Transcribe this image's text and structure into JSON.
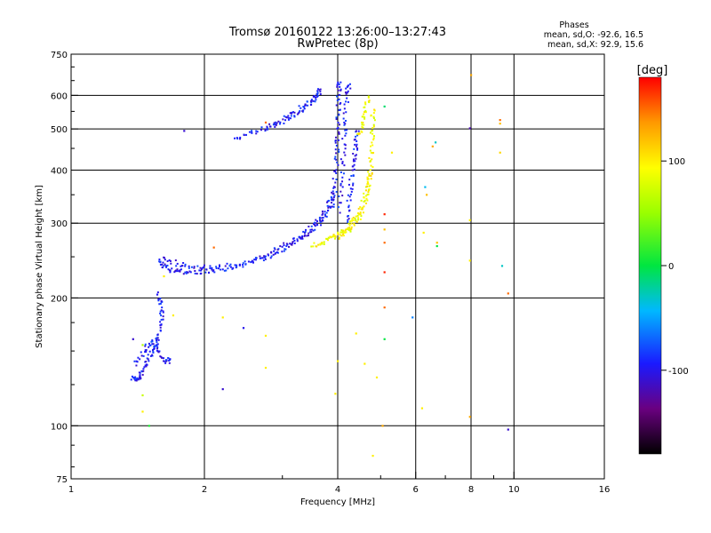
{
  "chart_data": {
    "type": "scatter",
    "title": "Tromsø 20160122 13:26:00–13:27:43",
    "subtitle": "RwPretec (8p)",
    "xlabel": "Frequency [MHz]",
    "ylabel": "Stationary phase Virtual Height [km]",
    "x_scale": "log",
    "y_scale": "log",
    "xlim": [
      1,
      16
    ],
    "ylim": [
      75,
      750
    ],
    "x_ticks": [
      {
        "v": 1,
        "label": "1"
      },
      {
        "v": 2,
        "label": "2"
      },
      {
        "v": 4,
        "label": "4"
      },
      {
        "v": 6,
        "label": "6"
      },
      {
        "v": 8,
        "label": "8"
      },
      {
        "v": 10,
        "label": "10"
      },
      {
        "v": 16,
        "label": "16"
      }
    ],
    "x_gridlines": [
      2,
      4,
      6,
      8,
      10
    ],
    "x_minor_ticks": [
      3,
      5,
      7,
      9
    ],
    "y_ticks": [
      {
        "v": 75,
        "label": "75"
      },
      {
        "v": 100,
        "label": "100"
      },
      {
        "v": 200,
        "label": "200"
      },
      {
        "v": 300,
        "label": "300"
      },
      {
        "v": 400,
        "label": "400"
      },
      {
        "v": 500,
        "label": "500"
      },
      {
        "v": 600,
        "label": "600"
      },
      {
        "v": 750,
        "label": "750"
      }
    ],
    "y_gridlines": [
      100,
      200,
      300,
      400,
      500,
      600
    ],
    "y_minor_ticks": [
      80,
      90,
      125,
      150,
      175,
      250,
      350,
      450,
      550,
      650,
      700
    ],
    "phases_header": "Phases",
    "phase_stats": [
      "mean, sd,O: -92.6, 16.5",
      "mean, sd,X:  92.9, 15.6"
    ],
    "colorbar": {
      "label": "[deg]",
      "range": [
        -180,
        180
      ],
      "ticks": [
        {
          "v": 100,
          "label": "100"
        },
        {
          "v": 0,
          "label": "0"
        },
        {
          "v": -100,
          "label": "-100"
        }
      ]
    },
    "series": [
      {
        "mode": "O",
        "phase_deg": -95,
        "segments": [
          [
            [
              1.37,
              130
            ],
            [
              1.41,
              128
            ],
            [
              1.44,
              132
            ],
            [
              1.47,
              140
            ],
            [
              1.52,
              148
            ],
            [
              1.56,
              155
            ],
            [
              1.58,
              165
            ],
            [
              1.6,
              180
            ],
            [
              1.59,
              195
            ],
            [
              1.57,
              205
            ]
          ],
          [
            [
              1.4,
              140
            ],
            [
              1.46,
              150
            ],
            [
              1.52,
              158
            ],
            [
              1.58,
              150
            ],
            [
              1.64,
              140
            ],
            [
              1.68,
              145
            ]
          ],
          [
            [
              1.58,
              245
            ],
            [
              1.62,
              238
            ],
            [
              1.7,
              232
            ],
            [
              1.8,
              230
            ],
            [
              1.95,
              230
            ],
            [
              2.1,
              232
            ],
            [
              2.3,
              236
            ],
            [
              2.55,
              242
            ],
            [
              2.8,
              250
            ],
            [
              3.0,
              260
            ],
            [
              3.2,
              270
            ],
            [
              3.4,
              282
            ],
            [
              3.6,
              295
            ],
            [
              3.75,
              310
            ],
            [
              3.88,
              330
            ],
            [
              3.96,
              360
            ]
          ],
          [
            [
              1.62,
              248
            ],
            [
              1.75,
              240
            ],
            [
              1.9,
              236
            ],
            [
              2.1,
              236
            ],
            [
              2.4,
              240
            ],
            [
              2.7,
              250
            ],
            [
              3.0,
              265
            ],
            [
              3.3,
              280
            ],
            [
              3.55,
              300
            ],
            [
              3.78,
              325
            ],
            [
              3.92,
              350
            ]
          ],
          [
            [
              2.35,
              470
            ],
            [
              2.55,
              490
            ],
            [
              2.8,
              505
            ],
            [
              3.05,
              530
            ],
            [
              3.3,
              560
            ],
            [
              3.55,
              595
            ],
            [
              3.7,
              630
            ]
          ],
          [
            [
              2.75,
              500
            ],
            [
              3.0,
              520
            ],
            [
              3.3,
              550
            ],
            [
              3.5,
              580
            ],
            [
              3.65,
              610
            ]
          ],
          [
            [
              3.92,
              350
            ],
            [
              3.96,
              400
            ],
            [
              3.99,
              450
            ],
            [
              4.0,
              500
            ],
            [
              4.01,
              560
            ],
            [
              4.02,
              620
            ],
            [
              4.04,
              650
            ]
          ],
          [
            [
              4.05,
              320
            ],
            [
              4.08,
              380
            ],
            [
              4.12,
              450
            ],
            [
              4.16,
              520
            ],
            [
              4.2,
              600
            ],
            [
              4.25,
              650
            ]
          ],
          [
            [
              4.2,
              300
            ],
            [
              4.25,
              340
            ],
            [
              4.3,
              380
            ],
            [
              4.35,
              420
            ],
            [
              4.4,
              460
            ],
            [
              4.45,
              500
            ]
          ]
        ]
      },
      {
        "mode": "X",
        "phase_deg": 92,
        "segments": [
          [
            [
              3.5,
              265
            ],
            [
              3.7,
              270
            ],
            [
              3.9,
              278
            ],
            [
              4.1,
              288
            ],
            [
              4.3,
              300
            ],
            [
              4.45,
              315
            ],
            [
              4.6,
              340
            ],
            [
              4.7,
              370
            ],
            [
              4.75,
              410
            ],
            [
              4.78,
              460
            ],
            [
              4.8,
              510
            ],
            [
              4.8,
              560
            ]
          ],
          [
            [
              3.95,
              275
            ],
            [
              4.15,
              285
            ],
            [
              4.35,
              295
            ],
            [
              4.55,
              320
            ],
            [
              4.68,
              360
            ],
            [
              4.74,
              400
            ]
          ],
          [
            [
              4.45,
              480
            ],
            [
              4.55,
              520
            ],
            [
              4.62,
              560
            ],
            [
              4.7,
              600
            ]
          ]
        ]
      }
    ],
    "scattered_points": [
      {
        "x": 1.8,
        "y": 495,
        "phase": -110
      },
      {
        "x": 1.5,
        "y": 100,
        "phase": 10
      },
      {
        "x": 1.45,
        "y": 108,
        "phase": 100
      },
      {
        "x": 1.45,
        "y": 118,
        "phase": 70
      },
      {
        "x": 1.38,
        "y": 160,
        "phase": -110
      },
      {
        "x": 1.45,
        "y": 155,
        "phase": 60
      },
      {
        "x": 1.62,
        "y": 225,
        "phase": 100
      },
      {
        "x": 1.7,
        "y": 182,
        "phase": 100
      },
      {
        "x": 2.1,
        "y": 263,
        "phase": 150
      },
      {
        "x": 2.2,
        "y": 180,
        "phase": 100
      },
      {
        "x": 2.2,
        "y": 122,
        "phase": -110
      },
      {
        "x": 2.45,
        "y": 170,
        "phase": -100
      },
      {
        "x": 2.75,
        "y": 163,
        "phase": 100
      },
      {
        "x": 2.75,
        "y": 137,
        "phase": 100
      },
      {
        "x": 2.75,
        "y": 518,
        "phase": 150
      },
      {
        "x": 3.95,
        "y": 119,
        "phase": 100
      },
      {
        "x": 4.0,
        "y": 142,
        "phase": 100
      },
      {
        "x": 4.4,
        "y": 165,
        "phase": 100
      },
      {
        "x": 4.6,
        "y": 140,
        "phase": 100
      },
      {
        "x": 4.8,
        "y": 85,
        "phase": 100
      },
      {
        "x": 4.9,
        "y": 130,
        "phase": 100
      },
      {
        "x": 5.05,
        "y": 100,
        "phase": 130
      },
      {
        "x": 5.1,
        "y": 160,
        "phase": 0
      },
      {
        "x": 5.1,
        "y": 190,
        "phase": 150
      },
      {
        "x": 5.1,
        "y": 230,
        "phase": 170
      },
      {
        "x": 5.1,
        "y": 270,
        "phase": 150
      },
      {
        "x": 5.1,
        "y": 290,
        "phase": 120
      },
      {
        "x": 5.1,
        "y": 315,
        "phase": 170
      },
      {
        "x": 5.1,
        "y": 565,
        "phase": -10
      },
      {
        "x": 5.3,
        "y": 440,
        "phase": 100
      },
      {
        "x": 5.9,
        "y": 180,
        "phase": -60
      },
      {
        "x": 6.2,
        "y": 110,
        "phase": 100
      },
      {
        "x": 6.25,
        "y": 285,
        "phase": 100
      },
      {
        "x": 6.3,
        "y": 365,
        "phase": -40
      },
      {
        "x": 6.35,
        "y": 350,
        "phase": 120
      },
      {
        "x": 6.55,
        "y": 455,
        "phase": 130
      },
      {
        "x": 6.65,
        "y": 465,
        "phase": -30
      },
      {
        "x": 6.7,
        "y": 270,
        "phase": 120
      },
      {
        "x": 6.7,
        "y": 265,
        "phase": 0
      },
      {
        "x": 7.95,
        "y": 502,
        "phase": -120
      },
      {
        "x": 7.95,
        "y": 305,
        "phase": 100
      },
      {
        "x": 7.95,
        "y": 245,
        "phase": 100
      },
      {
        "x": 7.95,
        "y": 105,
        "phase": 130
      },
      {
        "x": 8.0,
        "y": 670,
        "phase": 130
      },
      {
        "x": 9.3,
        "y": 525,
        "phase": 150
      },
      {
        "x": 9.3,
        "y": 515,
        "phase": 120
      },
      {
        "x": 9.3,
        "y": 440,
        "phase": 110
      },
      {
        "x": 9.4,
        "y": 238,
        "phase": -30
      },
      {
        "x": 9.7,
        "y": 205,
        "phase": 150
      },
      {
        "x": 9.7,
        "y": 98,
        "phase": -110
      }
    ]
  }
}
